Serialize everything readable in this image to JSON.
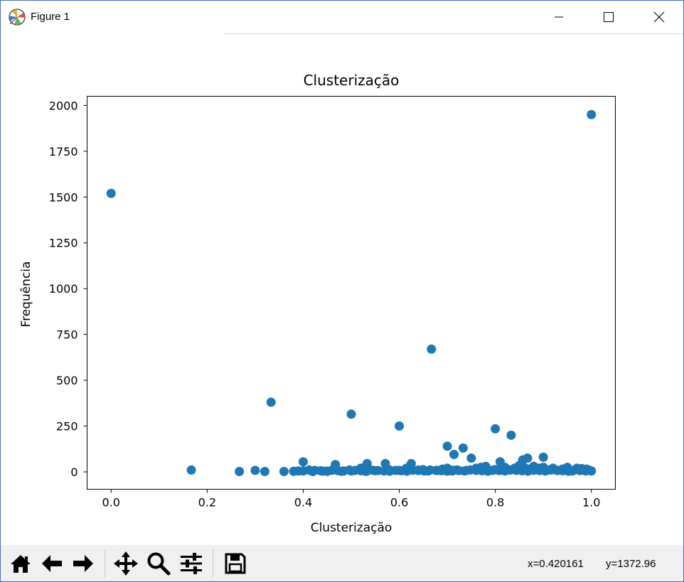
{
  "window": {
    "title": "Figure 1",
    "icons": [
      "matplotlib-logo-icon",
      "minimize-icon",
      "maximize-icon",
      "close-icon"
    ]
  },
  "chart_data": {
    "type": "scatter",
    "title": "Clusterização",
    "xlabel": "Clusterização",
    "ylabel": "Frequência",
    "xlim": [
      -0.05,
      1.05
    ],
    "ylim": [
      -95,
      2050
    ],
    "xticks": [
      0.0,
      0.2,
      0.4,
      0.6,
      0.8,
      1.0
    ],
    "xtick_labels": [
      "0.0",
      "0.2",
      "0.4",
      "0.6",
      "0.8",
      "1.0"
    ],
    "yticks": [
      0,
      250,
      500,
      750,
      1000,
      1250,
      1500,
      1750,
      2000
    ],
    "ytick_labels": [
      "0",
      "250",
      "500",
      "750",
      "1000",
      "1250",
      "1500",
      "1750",
      "2000"
    ],
    "color": "#1f77b4",
    "grid": false,
    "series": [
      {
        "x": [
          0.0,
          1.0,
          0.667,
          0.333,
          0.5,
          0.6,
          0.8,
          0.833,
          0.7,
          0.733,
          0.714,
          0.75,
          0.9,
          0.857,
          0.867,
          0.4,
          0.167,
          0.267,
          0.3,
          0.32,
          0.36,
          0.38,
          0.39,
          0.42,
          0.44,
          0.45,
          0.467,
          0.48,
          0.5,
          0.52,
          0.53,
          0.533,
          0.55,
          0.571,
          0.58,
          0.6,
          0.615,
          0.625,
          0.64,
          0.65,
          0.66,
          0.68,
          0.69,
          0.7,
          0.71,
          0.72,
          0.74,
          0.76,
          0.77,
          0.78,
          0.79,
          0.8,
          0.81,
          0.818,
          0.82,
          0.83,
          0.84,
          0.85,
          0.86,
          0.87,
          0.88,
          0.89,
          0.9,
          0.91,
          0.92,
          0.93,
          0.94,
          0.95,
          0.96,
          0.97,
          0.98,
          0.985,
          0.99,
          0.995,
          1.0
        ],
        "y": [
          1520,
          1950,
          670,
          380,
          315,
          250,
          235,
          200,
          140,
          130,
          95,
          75,
          80,
          65,
          75,
          55,
          10,
          2,
          8,
          2,
          2,
          3,
          5,
          2,
          4,
          3,
          40,
          3,
          5,
          20,
          3,
          45,
          6,
          45,
          4,
          8,
          20,
          45,
          10,
          12,
          5,
          8,
          15,
          20,
          5,
          10,
          8,
          20,
          25,
          30,
          8,
          12,
          55,
          15,
          25,
          10,
          20,
          35,
          25,
          15,
          30,
          20,
          25,
          10,
          20,
          8,
          15,
          25,
          5,
          20,
          18,
          10,
          15,
          10,
          5
        ]
      }
    ]
  },
  "toolbar": {
    "tools": [
      "home-icon",
      "back-arrow-icon",
      "forward-arrow-icon",
      "pan-icon",
      "zoom-icon",
      "configure-subplots-icon",
      "save-icon"
    ],
    "coord_x": "x=0.420161",
    "coord_y": "y=1372.96"
  }
}
